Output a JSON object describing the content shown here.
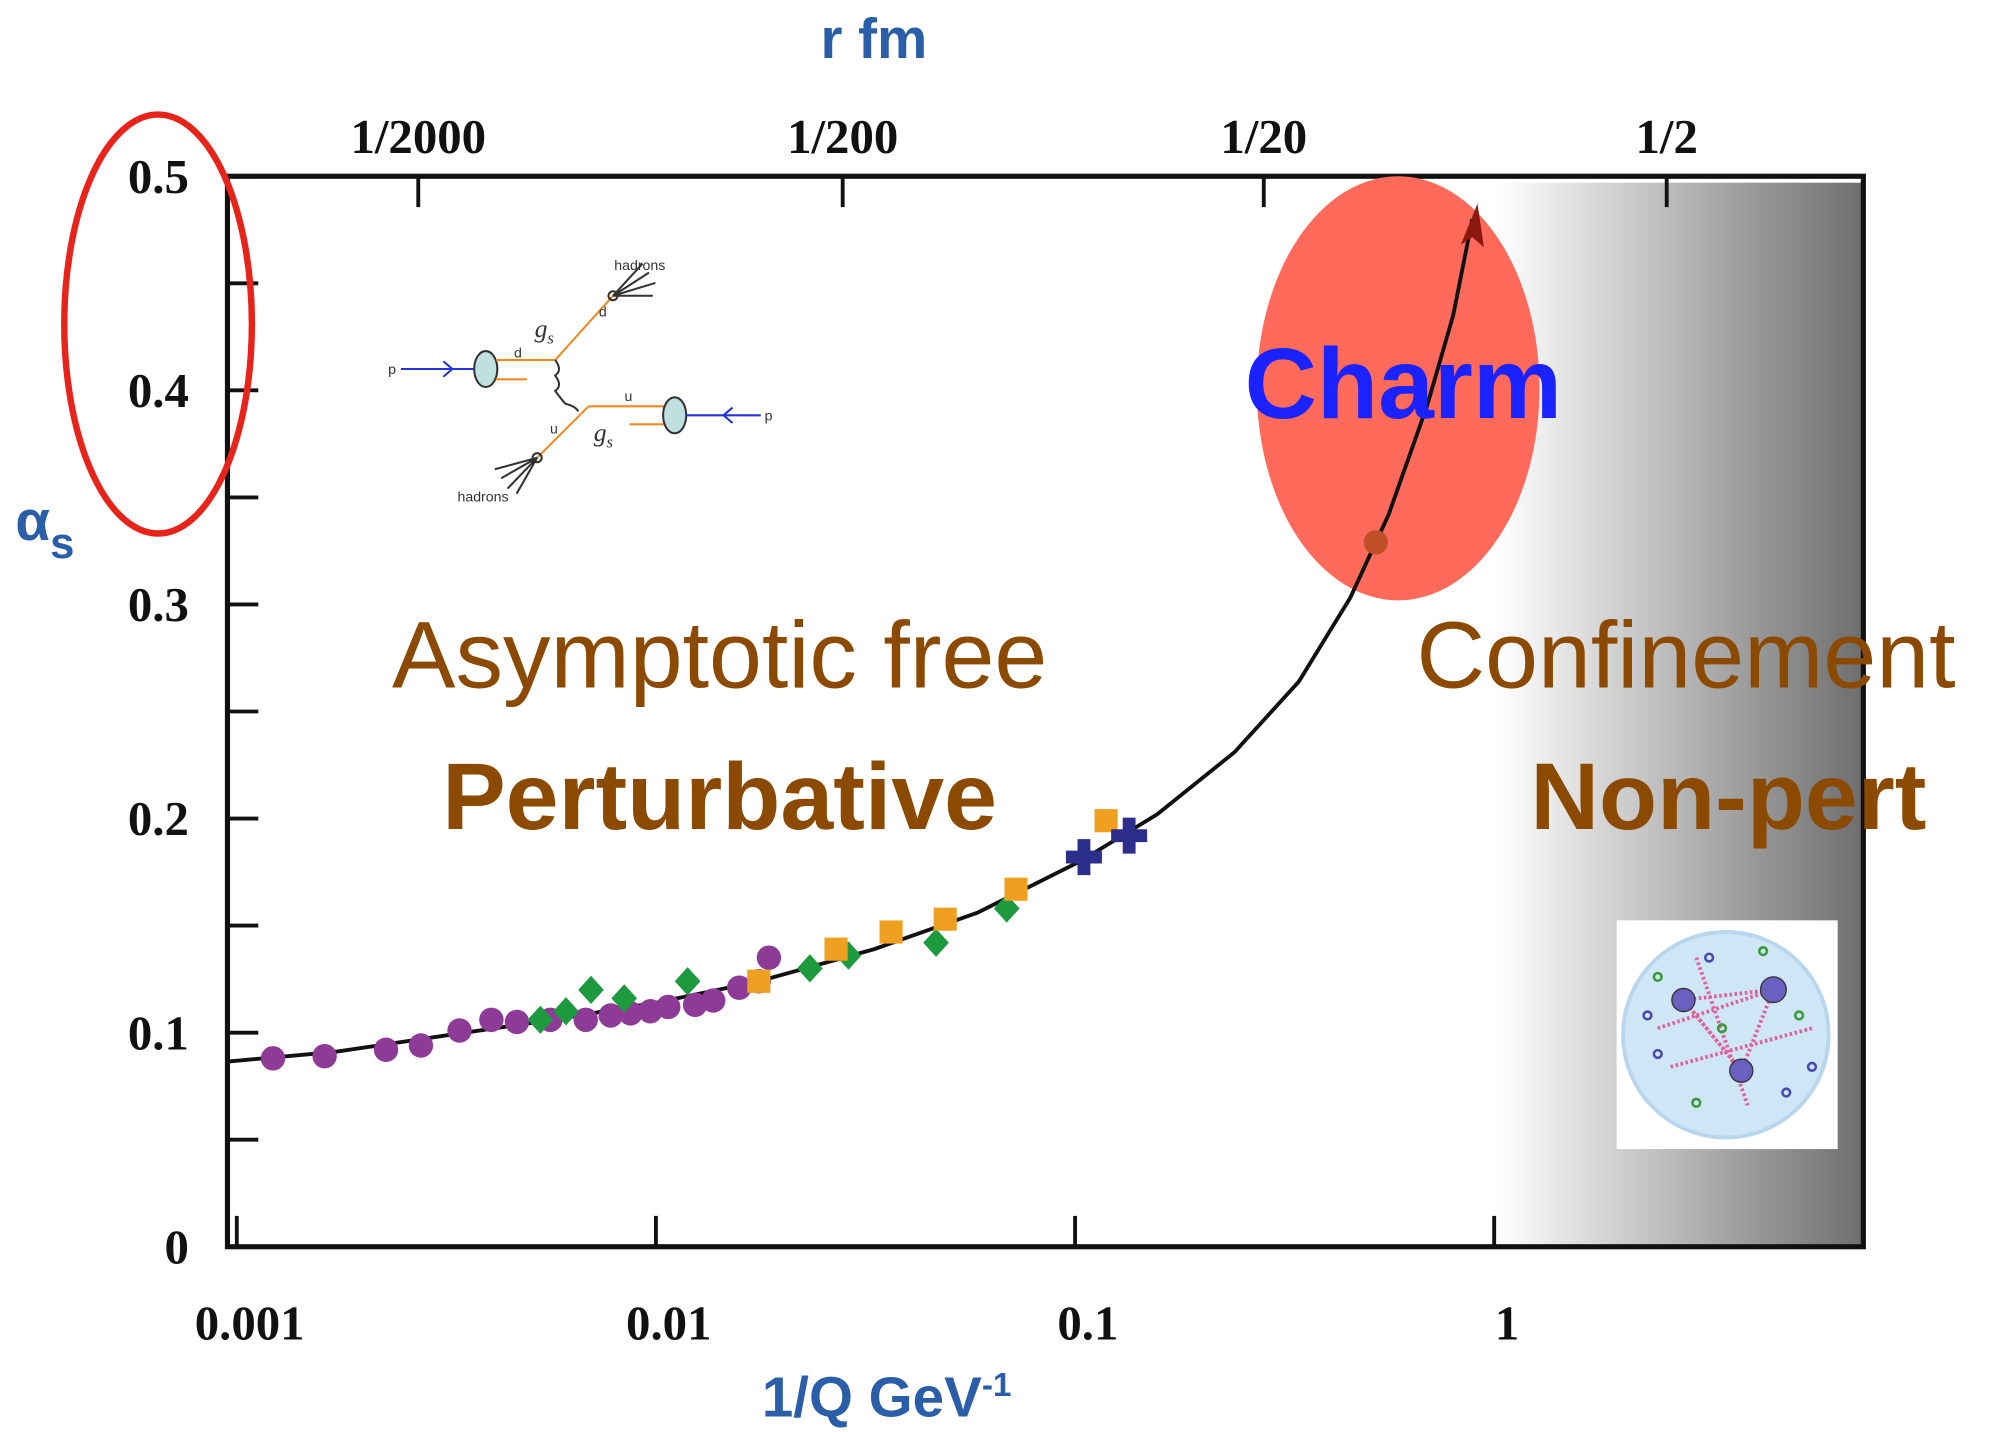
{
  "chart_data": {
    "type": "scatter",
    "xlabel": {
      "text": "1/Q GeV",
      "sup": "-1"
    },
    "x2label": "r fm",
    "ylabel": {
      "text": "α",
      "sub": "s"
    },
    "xscale": "log",
    "xlim": [
      0.00095,
      7.6
    ],
    "xticks": [
      0.001,
      0.01,
      0.1,
      1
    ],
    "x2ticks": [
      {
        "value": 0.00271,
        "label": "1/2000"
      },
      {
        "value": 0.0279,
        "label": "1/200"
      },
      {
        "value": 0.282,
        "label": "1/20"
      },
      {
        "value": 2.58,
        "label": "1/2"
      }
    ],
    "ylim": [
      0,
      0.5
    ],
    "yticks": [
      0,
      0.1,
      0.2,
      0.3,
      0.4,
      0.5
    ],
    "yminor": [
      0.05,
      0.15,
      0.25,
      0.35,
      0.45
    ],
    "series": [
      {
        "marker": "circle",
        "color": "#8e3a97",
        "x": [
          0.00122,
          0.00162,
          0.00227,
          0.00275,
          0.0034,
          0.00405,
          0.00466,
          0.0056,
          0.0068,
          0.0078,
          0.0087,
          0.0097,
          0.0107,
          0.0124,
          0.0137,
          0.0158,
          0.0176,
          0.0186
        ],
        "y": [
          0.088,
          0.089,
          0.092,
          0.094,
          0.101,
          0.106,
          0.105,
          0.106,
          0.106,
          0.108,
          0.109,
          0.11,
          0.112,
          0.113,
          0.115,
          0.121,
          0.124,
          0.135
        ]
      },
      {
        "marker": "diamond",
        "color": "#1e9a3e",
        "x": [
          0.0053,
          0.0061,
          0.007,
          0.0084,
          0.0119,
          0.0233,
          0.0288,
          0.0466,
          0.0687
        ],
        "y": [
          0.106,
          0.11,
          0.12,
          0.116,
          0.124,
          0.13,
          0.136,
          0.142,
          0.158
        ]
      },
      {
        "marker": "square",
        "color": "#f0a020",
        "x": [
          0.0176,
          0.0269,
          0.0364,
          0.049,
          0.0723,
          0.1186
        ],
        "y": [
          0.124,
          0.139,
          0.147,
          0.153,
          0.167,
          0.199
        ]
      },
      {
        "marker": "cross",
        "color": "#2b2e8a",
        "x": [
          0.105,
          0.1346
        ],
        "y": [
          0.182,
          0.192
        ]
      },
      {
        "marker": "circle",
        "color": "#c0502a",
        "x": [
          0.522
        ],
        "y": [
          0.329
        ]
      }
    ],
    "curve": {
      "color": "#111",
      "x": [
        0.000952,
        0.00171,
        0.00323,
        0.00568,
        0.01,
        0.0176,
        0.0332,
        0.0585,
        0.1028,
        0.157,
        0.24,
        0.342,
        0.453,
        0.56,
        0.692,
        0.798,
        0.887
      ],
      "y": [
        0.0865,
        0.091,
        0.099,
        0.106,
        0.114,
        0.124,
        0.139,
        0.156,
        0.18,
        0.202,
        0.231,
        0.264,
        0.303,
        0.342,
        0.393,
        0.435,
        0.48
      ]
    },
    "annotations": [
      "Charm",
      "Asymptotic free",
      "Perturbative",
      "Confinement",
      "Non-pert"
    ],
    "feynman_labels": [
      "hadrons",
      "hadrons",
      "p",
      "p",
      "d",
      "d",
      "u",
      "u",
      "g",
      "s",
      "g",
      "s"
    ]
  }
}
